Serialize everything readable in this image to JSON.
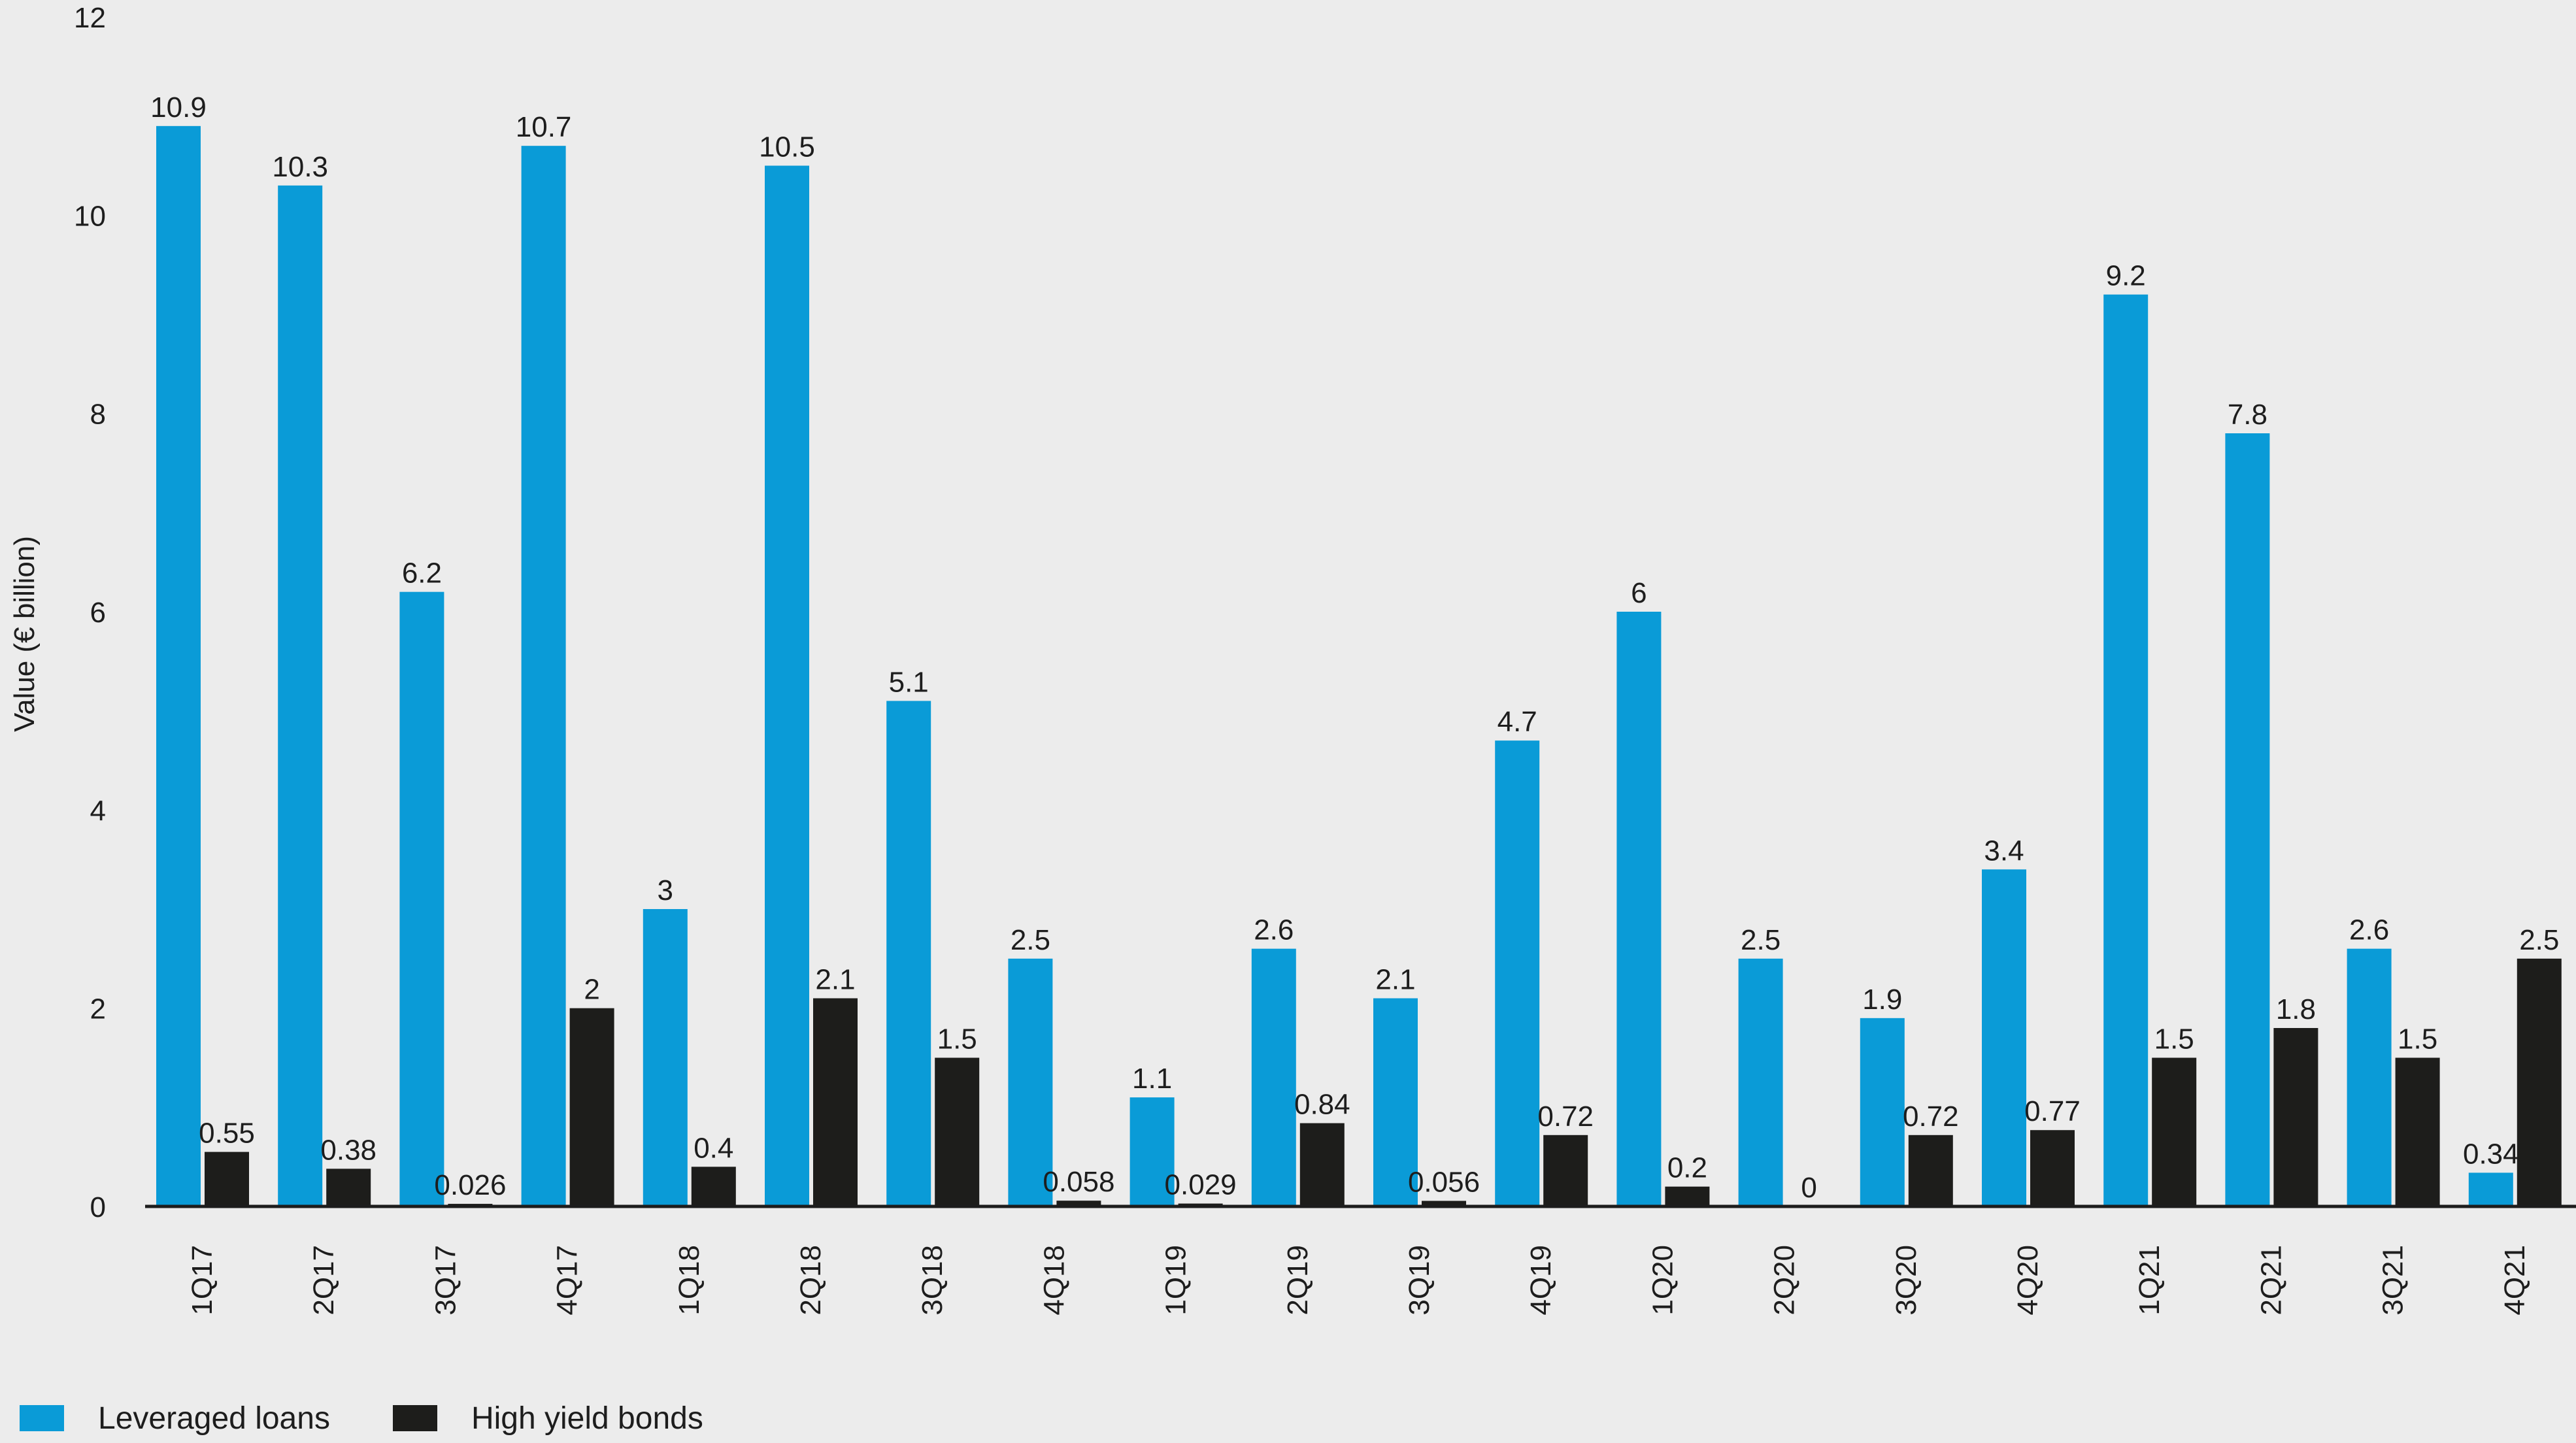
{
  "chart_data": {
    "type": "bar",
    "categories": [
      "1Q17",
      "2Q17",
      "3Q17",
      "4Q17",
      "1Q18",
      "2Q18",
      "3Q18",
      "4Q18",
      "1Q19",
      "2Q19",
      "3Q19",
      "4Q19",
      "1Q20",
      "2Q20",
      "3Q20",
      "4Q20",
      "1Q21",
      "2Q21",
      "3Q21",
      "4Q21"
    ],
    "series": [
      {
        "name": "Leveraged loans",
        "color": "#0a9bd7",
        "values": [
          10.9,
          10.3,
          6.2,
          10.7,
          3,
          10.5,
          5.1,
          2.5,
          1.1,
          2.6,
          2.1,
          4.7,
          6,
          2.5,
          1.9,
          3.4,
          9.2,
          7.8,
          2.6,
          0.34
        ],
        "labels": [
          "10.9",
          "10.3",
          "6.2",
          "10.7",
          "3",
          "10.5",
          "5.1",
          "2.5",
          "1.1",
          "2.6",
          "2.1",
          "4.7",
          "6",
          "2.5",
          "1.9",
          "3.4",
          "9.2",
          "7.8",
          "2.6",
          "0.34"
        ]
      },
      {
        "name": "High yield bonds",
        "color": "#1d1d1b",
        "values": [
          0.55,
          0.38,
          0.026,
          2,
          0.4,
          2.1,
          1.5,
          0.058,
          0.029,
          0.84,
          0.056,
          0.72,
          0.2,
          0,
          0.72,
          0.77,
          1.5,
          1.8,
          1.5,
          2.5
        ],
        "labels": [
          "0.55",
          "0.38",
          "0.026",
          "2",
          "0.4",
          "2.1",
          "1.5",
          "0.058",
          "0.029",
          "0.84",
          "0.056",
          "0.72",
          "0.2",
          "0",
          "0.72",
          "0.77",
          "1.5",
          "1.8",
          "1.5",
          "2.5"
        ]
      }
    ],
    "title": "",
    "xlabel": "",
    "ylabel": "Value (€ billion)",
    "ylim": [
      0,
      12
    ],
    "yticks": [
      "0",
      "2",
      "4",
      "6",
      "8",
      "10",
      "12"
    ],
    "grid": false,
    "legend_position": "bottom-left"
  }
}
